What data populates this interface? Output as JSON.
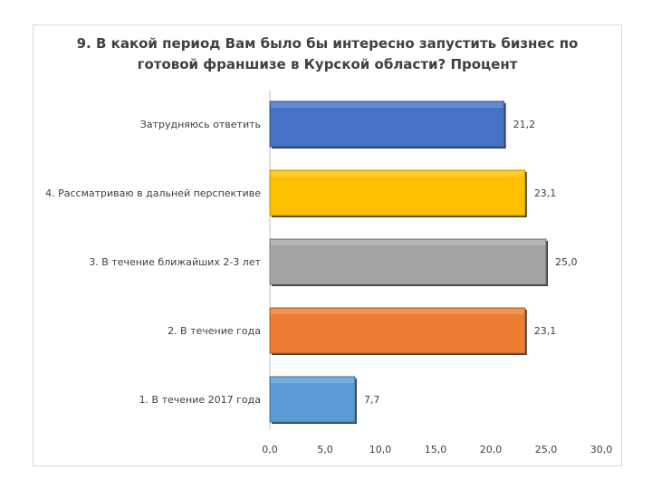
{
  "chart_data": {
    "type": "bar",
    "orientation": "horizontal",
    "title": "9. В какой период Вам было бы интересно запустить бизнес по готовой франшизе в Курской области? Процент",
    "title_lines": [
      "9. В какой период Вам было бы интересно запустить бизнес по",
      "готовой франшизе в Курской области? Процент"
    ],
    "categories": [
      "Затрудняюсь ответить",
      "4. Рассматриваю в дальней перспективе",
      "3. В течение ближайших 2-3 лет",
      "2. В течение года",
      "1. В течение 2017 года"
    ],
    "values": [
      21.2,
      23.1,
      25.0,
      23.1,
      7.7
    ],
    "value_labels": [
      "21,2",
      "23,1",
      "25,0",
      "23,1",
      "7,7"
    ],
    "bar_colors": [
      "#4472c4",
      "#ffc000",
      "#a5a5a5",
      "#ed7d31",
      "#5b9bd5"
    ],
    "xlim": [
      0,
      30
    ],
    "x_ticks": [
      0,
      5,
      10,
      15,
      20,
      25,
      30
    ],
    "x_tick_labels": [
      "0,0",
      "5,0",
      "10,0",
      "15,0",
      "20,0",
      "25,0",
      "30,0"
    ],
    "grid": false,
    "legend": "none"
  }
}
